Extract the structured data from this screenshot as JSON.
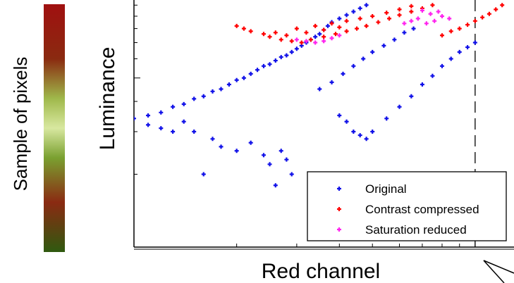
{
  "sample_label": "Sample of pixels",
  "colors": {
    "original": "#1010e8",
    "contrast_compressed": "#ff0000",
    "saturation_reduced": "#ff22ee"
  },
  "chart_data": {
    "type": "scatter",
    "xlabel": "Red channel",
    "ylabel": "Luminance",
    "xscale": "log",
    "yscale": "log",
    "xlim": [
      0.1,
      1.3
    ],
    "ylim": [
      0.1,
      1.05
    ],
    "grid": false,
    "legend_placement": "bottom-right",
    "reference_line_x": 1.0,
    "series": [
      {
        "name": "Original",
        "marker": "+",
        "points": [
          [
            0.1,
            0.34
          ],
          [
            0.11,
            0.35
          ],
          [
            0.12,
            0.36
          ],
          [
            0.13,
            0.38
          ],
          [
            0.14,
            0.39
          ],
          [
            0.15,
            0.41
          ],
          [
            0.16,
            0.42
          ],
          [
            0.17,
            0.44
          ],
          [
            0.18,
            0.45
          ],
          [
            0.19,
            0.47
          ],
          [
            0.2,
            0.49
          ],
          [
            0.21,
            0.5
          ],
          [
            0.22,
            0.52
          ],
          [
            0.23,
            0.54
          ],
          [
            0.24,
            0.56
          ],
          [
            0.25,
            0.57
          ],
          [
            0.26,
            0.59
          ],
          [
            0.27,
            0.61
          ],
          [
            0.28,
            0.62
          ],
          [
            0.29,
            0.64
          ],
          [
            0.3,
            0.66
          ],
          [
            0.31,
            0.68
          ],
          [
            0.32,
            0.7
          ],
          [
            0.33,
            0.72
          ],
          [
            0.34,
            0.74
          ],
          [
            0.35,
            0.76
          ],
          [
            0.36,
            0.79
          ],
          [
            0.37,
            0.82
          ],
          [
            0.38,
            0.85
          ],
          [
            0.4,
            0.88
          ],
          [
            0.42,
            0.91
          ],
          [
            0.44,
            0.94
          ],
          [
            0.46,
            0.97
          ],
          [
            0.48,
            1.0
          ],
          [
            0.15,
            0.3
          ],
          [
            0.17,
            0.28
          ],
          [
            0.18,
            0.26
          ],
          [
            0.2,
            0.25
          ],
          [
            0.22,
            0.27
          ],
          [
            0.24,
            0.24
          ],
          [
            0.25,
            0.22
          ],
          [
            0.27,
            0.25
          ],
          [
            0.28,
            0.23
          ],
          [
            0.16,
            0.2
          ],
          [
            0.26,
            0.18
          ],
          [
            0.29,
            0.2
          ],
          [
            0.4,
            0.35
          ],
          [
            0.42,
            0.33
          ],
          [
            0.44,
            0.3
          ],
          [
            0.46,
            0.29
          ],
          [
            0.48,
            0.28
          ],
          [
            0.5,
            0.3
          ],
          [
            0.55,
            0.34
          ],
          [
            0.6,
            0.38
          ],
          [
            0.65,
            0.42
          ],
          [
            0.7,
            0.47
          ],
          [
            0.75,
            0.51
          ],
          [
            0.8,
            0.56
          ],
          [
            0.85,
            0.6
          ],
          [
            0.9,
            0.64
          ],
          [
            0.95,
            0.67
          ],
          [
            1.0,
            0.7
          ],
          [
            0.35,
            0.45
          ],
          [
            0.38,
            0.48
          ],
          [
            0.41,
            0.52
          ],
          [
            0.44,
            0.56
          ],
          [
            0.47,
            0.6
          ],
          [
            0.5,
            0.64
          ],
          [
            0.54,
            0.68
          ],
          [
            0.58,
            0.72
          ],
          [
            0.62,
            0.77
          ],
          [
            0.66,
            0.8
          ],
          [
            0.12,
            0.31
          ],
          [
            0.14,
            0.33
          ],
          [
            0.11,
            0.32
          ],
          [
            0.13,
            0.3
          ]
        ]
      },
      {
        "name": "Contrast compressed",
        "marker": "+",
        "points": [
          [
            0.2,
            0.82
          ],
          [
            0.21,
            0.8
          ],
          [
            0.22,
            0.78
          ],
          [
            0.24,
            0.76
          ],
          [
            0.25,
            0.74
          ],
          [
            0.27,
            0.72
          ],
          [
            0.29,
            0.71
          ],
          [
            0.31,
            0.7
          ],
          [
            0.33,
            0.72
          ],
          [
            0.36,
            0.74
          ],
          [
            0.39,
            0.76
          ],
          [
            0.42,
            0.78
          ],
          [
            0.45,
            0.8
          ],
          [
            0.48,
            0.82
          ],
          [
            0.52,
            0.85
          ],
          [
            0.56,
            0.88
          ],
          [
            0.6,
            0.91
          ],
          [
            0.65,
            0.94
          ],
          [
            0.7,
            0.97
          ],
          [
            0.75,
            1.0
          ],
          [
            0.3,
            0.8
          ],
          [
            0.34,
            0.82
          ],
          [
            0.38,
            0.84
          ],
          [
            0.42,
            0.86
          ],
          [
            0.46,
            0.88
          ],
          [
            0.5,
            0.9
          ],
          [
            0.55,
            0.93
          ],
          [
            0.6,
            0.96
          ],
          [
            0.65,
            0.99
          ],
          [
            0.8,
            0.75
          ],
          [
            0.85,
            0.78
          ],
          [
            0.9,
            0.8
          ],
          [
            0.95,
            0.83
          ],
          [
            1.0,
            0.86
          ],
          [
            1.05,
            0.89
          ],
          [
            1.1,
            0.92
          ],
          [
            1.15,
            0.96
          ],
          [
            1.2,
            1.0
          ],
          [
            0.26,
            0.77
          ],
          [
            0.28,
            0.75
          ],
          [
            0.32,
            0.77
          ],
          [
            0.36,
            0.79
          ],
          [
            0.4,
            0.81
          ]
        ]
      },
      {
        "name": "Saturation reduced",
        "marker": "+",
        "points": [
          [
            0.3,
            0.72
          ],
          [
            0.32,
            0.71
          ],
          [
            0.34,
            0.7
          ],
          [
            0.36,
            0.71
          ],
          [
            0.38,
            0.73
          ],
          [
            0.4,
            0.75
          ],
          [
            0.62,
            0.84
          ],
          [
            0.65,
            0.86
          ],
          [
            0.68,
            0.88
          ],
          [
            0.72,
            0.84
          ],
          [
            0.76,
            0.86
          ],
          [
            0.8,
            0.9
          ],
          [
            0.7,
            0.95
          ],
          [
            0.74,
            0.92
          ],
          [
            0.78,
            0.94
          ],
          [
            0.84,
            0.88
          ]
        ]
      }
    ]
  }
}
